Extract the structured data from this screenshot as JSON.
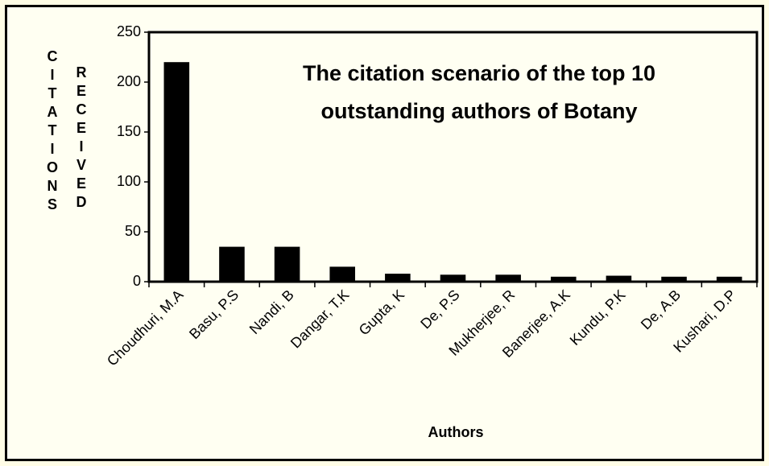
{
  "chart_data": {
    "type": "bar",
    "title": "The citation scenario of the top 10 outstanding authors of Botany",
    "x_label": "Authors",
    "y_label": [
      "CITATIONS",
      "RECEIVED"
    ],
    "categories": [
      "Choudhuri, M.A",
      "Basu, P.S",
      "Nandi, B",
      "Dangar, T.K",
      "Gupta, K",
      "De, P.S",
      "Mukherjee, R",
      "Banerjee, A.K",
      "Kundu, P.K",
      "De, A.B",
      "Kushari, D.P"
    ],
    "values": [
      220,
      35,
      35,
      15,
      8,
      7,
      7,
      5,
      6,
      5,
      5
    ],
    "color": "#000000",
    "ylim": [
      0,
      250
    ],
    "yticks": [
      0,
      50,
      100,
      150,
      200,
      250
    ],
    "grid": false
  }
}
